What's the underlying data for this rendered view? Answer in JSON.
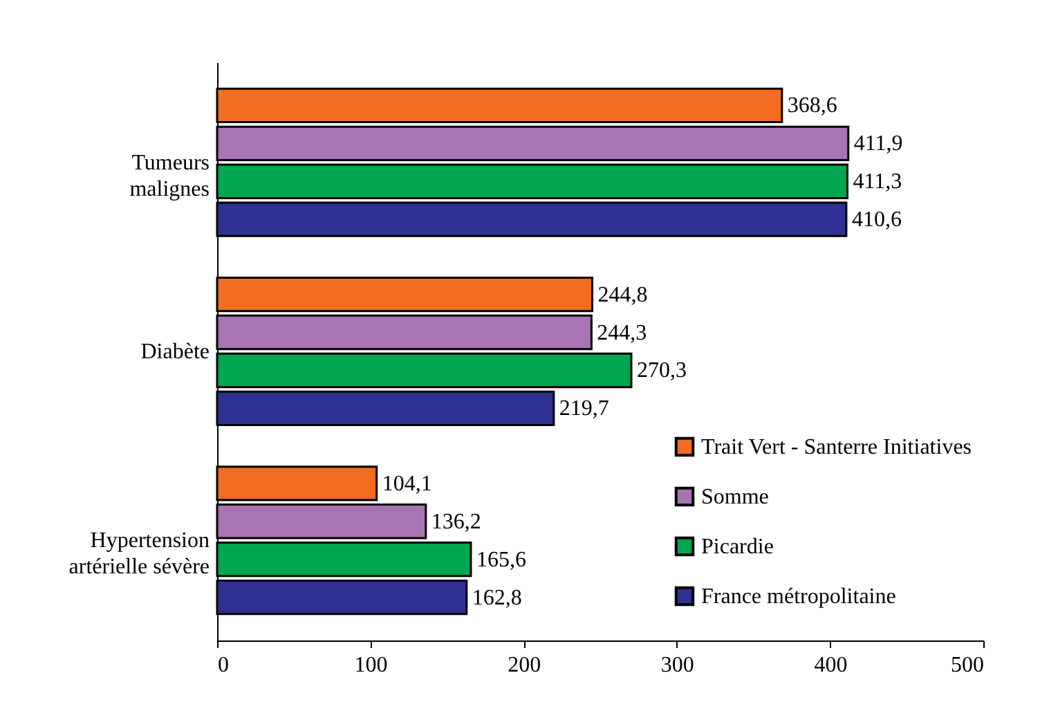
{
  "chart_data": {
    "type": "bar",
    "orientation": "horizontal",
    "categories": [
      "Tumeurs\nmalignes",
      "Diabète",
      "Hypertension\nartérielle sévère"
    ],
    "series": [
      {
        "name": "Trait Vert - Santerre Initiatives",
        "color": "#f26c21",
        "values": [
          368.6,
          244.8,
          104.1
        ],
        "value_labels": [
          "368,6",
          "244,8",
          "104,1"
        ]
      },
      {
        "name": "Somme",
        "color": "#a874b4",
        "values": [
          411.9,
          244.3,
          136.2
        ],
        "value_labels": [
          "411,9",
          "244,3",
          "136,2"
        ]
      },
      {
        "name": "Picardie",
        "color": "#00a650",
        "values": [
          411.3,
          270.3,
          165.6
        ],
        "value_labels": [
          "411,3",
          "270,3",
          "165,6"
        ]
      },
      {
        "name": "France métropolitaine",
        "color": "#2e3192",
        "values": [
          410.6,
          219.7,
          162.8
        ],
        "value_labels": [
          "410,6",
          "219,7",
          "162,8"
        ]
      }
    ],
    "xlim": [
      0,
      500
    ],
    "xticks": [
      0,
      100,
      200,
      300,
      400,
      500
    ],
    "grid": false,
    "legend": "bottom right"
  }
}
